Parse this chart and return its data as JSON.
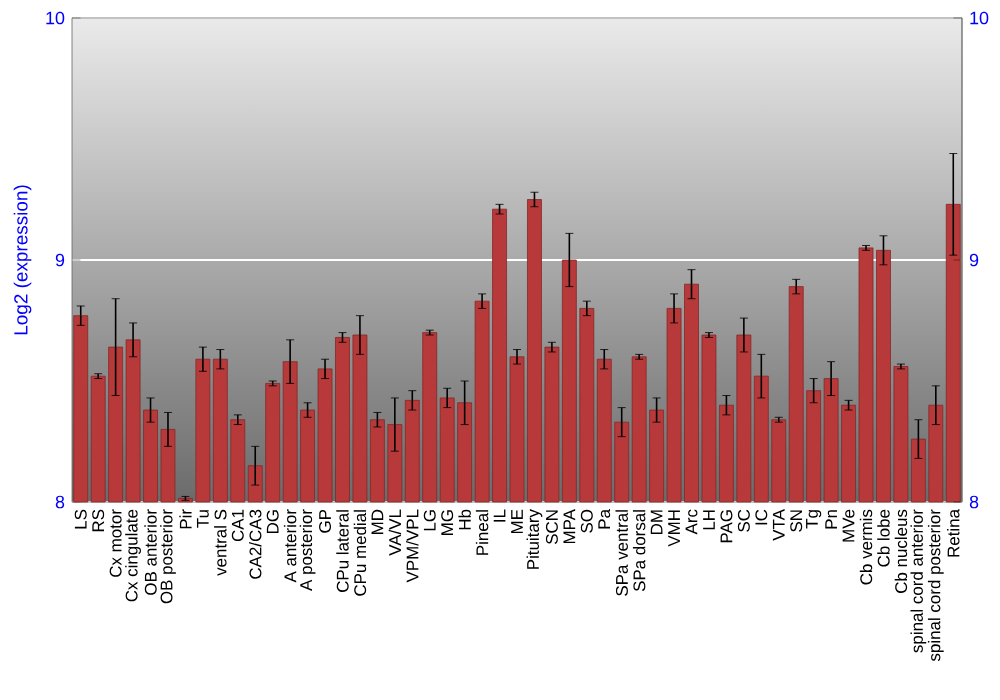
{
  "chart_data": {
    "type": "bar",
    "ylabel": "Log2 (expression)",
    "categories": [
      "LS",
      "RS",
      "Cx motor",
      "Cx cingulate",
      "OB anterior",
      "OB posterior",
      "Pir",
      "Tu",
      "ventral S",
      "CA1",
      "CA2/CA3",
      "DG",
      "A anterior",
      "A posterior",
      "GP",
      "CPu lateral",
      "CPu medial",
      "MD",
      "VA/VL",
      "VPM/VPL",
      "LG",
      "MG",
      "Hb",
      "Pineal",
      "IL",
      "ME",
      "Pituitary",
      "SCN",
      "MPA",
      "SO",
      "Pa",
      "SPa ventral",
      "SPa dorsal",
      "DM",
      "VMH",
      "Arc",
      "LH",
      "PAG",
      "SC",
      "IC",
      "VTA",
      "SN",
      "Tg",
      "Pn",
      "MVe",
      "Cb vermis",
      "Cb lobe",
      "Cb nucleus",
      "spinal cord anterior",
      "spinal cord posterior",
      "Retina"
    ],
    "values": [
      8.77,
      8.52,
      8.64,
      8.67,
      8.38,
      8.3,
      8.015,
      8.59,
      8.59,
      8.34,
      8.15,
      8.49,
      8.58,
      8.38,
      8.55,
      8.68,
      8.69,
      8.34,
      8.32,
      8.42,
      8.7,
      8.43,
      8.41,
      8.83,
      9.21,
      8.6,
      9.25,
      8.64,
      9.0,
      8.8,
      8.59,
      8.33,
      8.6,
      8.38,
      8.8,
      8.9,
      8.69,
      8.4,
      8.69,
      8.52,
      8.34,
      8.89,
      8.46,
      8.51,
      8.4,
      9.05,
      9.04,
      8.56,
      8.26,
      8.4,
      9.23
    ],
    "errors": [
      0.04,
      0.01,
      0.2,
      0.07,
      0.05,
      0.07,
      0.008,
      0.05,
      0.04,
      0.02,
      0.08,
      0.01,
      0.09,
      0.03,
      0.04,
      0.02,
      0.08,
      0.03,
      0.11,
      0.04,
      0.01,
      0.04,
      0.09,
      0.03,
      0.02,
      0.03,
      0.03,
      0.02,
      0.11,
      0.03,
      0.04,
      0.06,
      0.01,
      0.05,
      0.06,
      0.06,
      0.01,
      0.04,
      0.07,
      0.09,
      0.01,
      0.03,
      0.05,
      0.07,
      0.02,
      0.01,
      0.06,
      0.01,
      0.08,
      0.08,
      0.21
    ],
    "color": "#b8393a",
    "ylim": [
      8,
      10
    ],
    "yticks": [
      8,
      9,
      10
    ],
    "y2lim": [
      8,
      10
    ],
    "y2ticks": [
      8,
      9,
      10
    ],
    "grid": "y"
  }
}
